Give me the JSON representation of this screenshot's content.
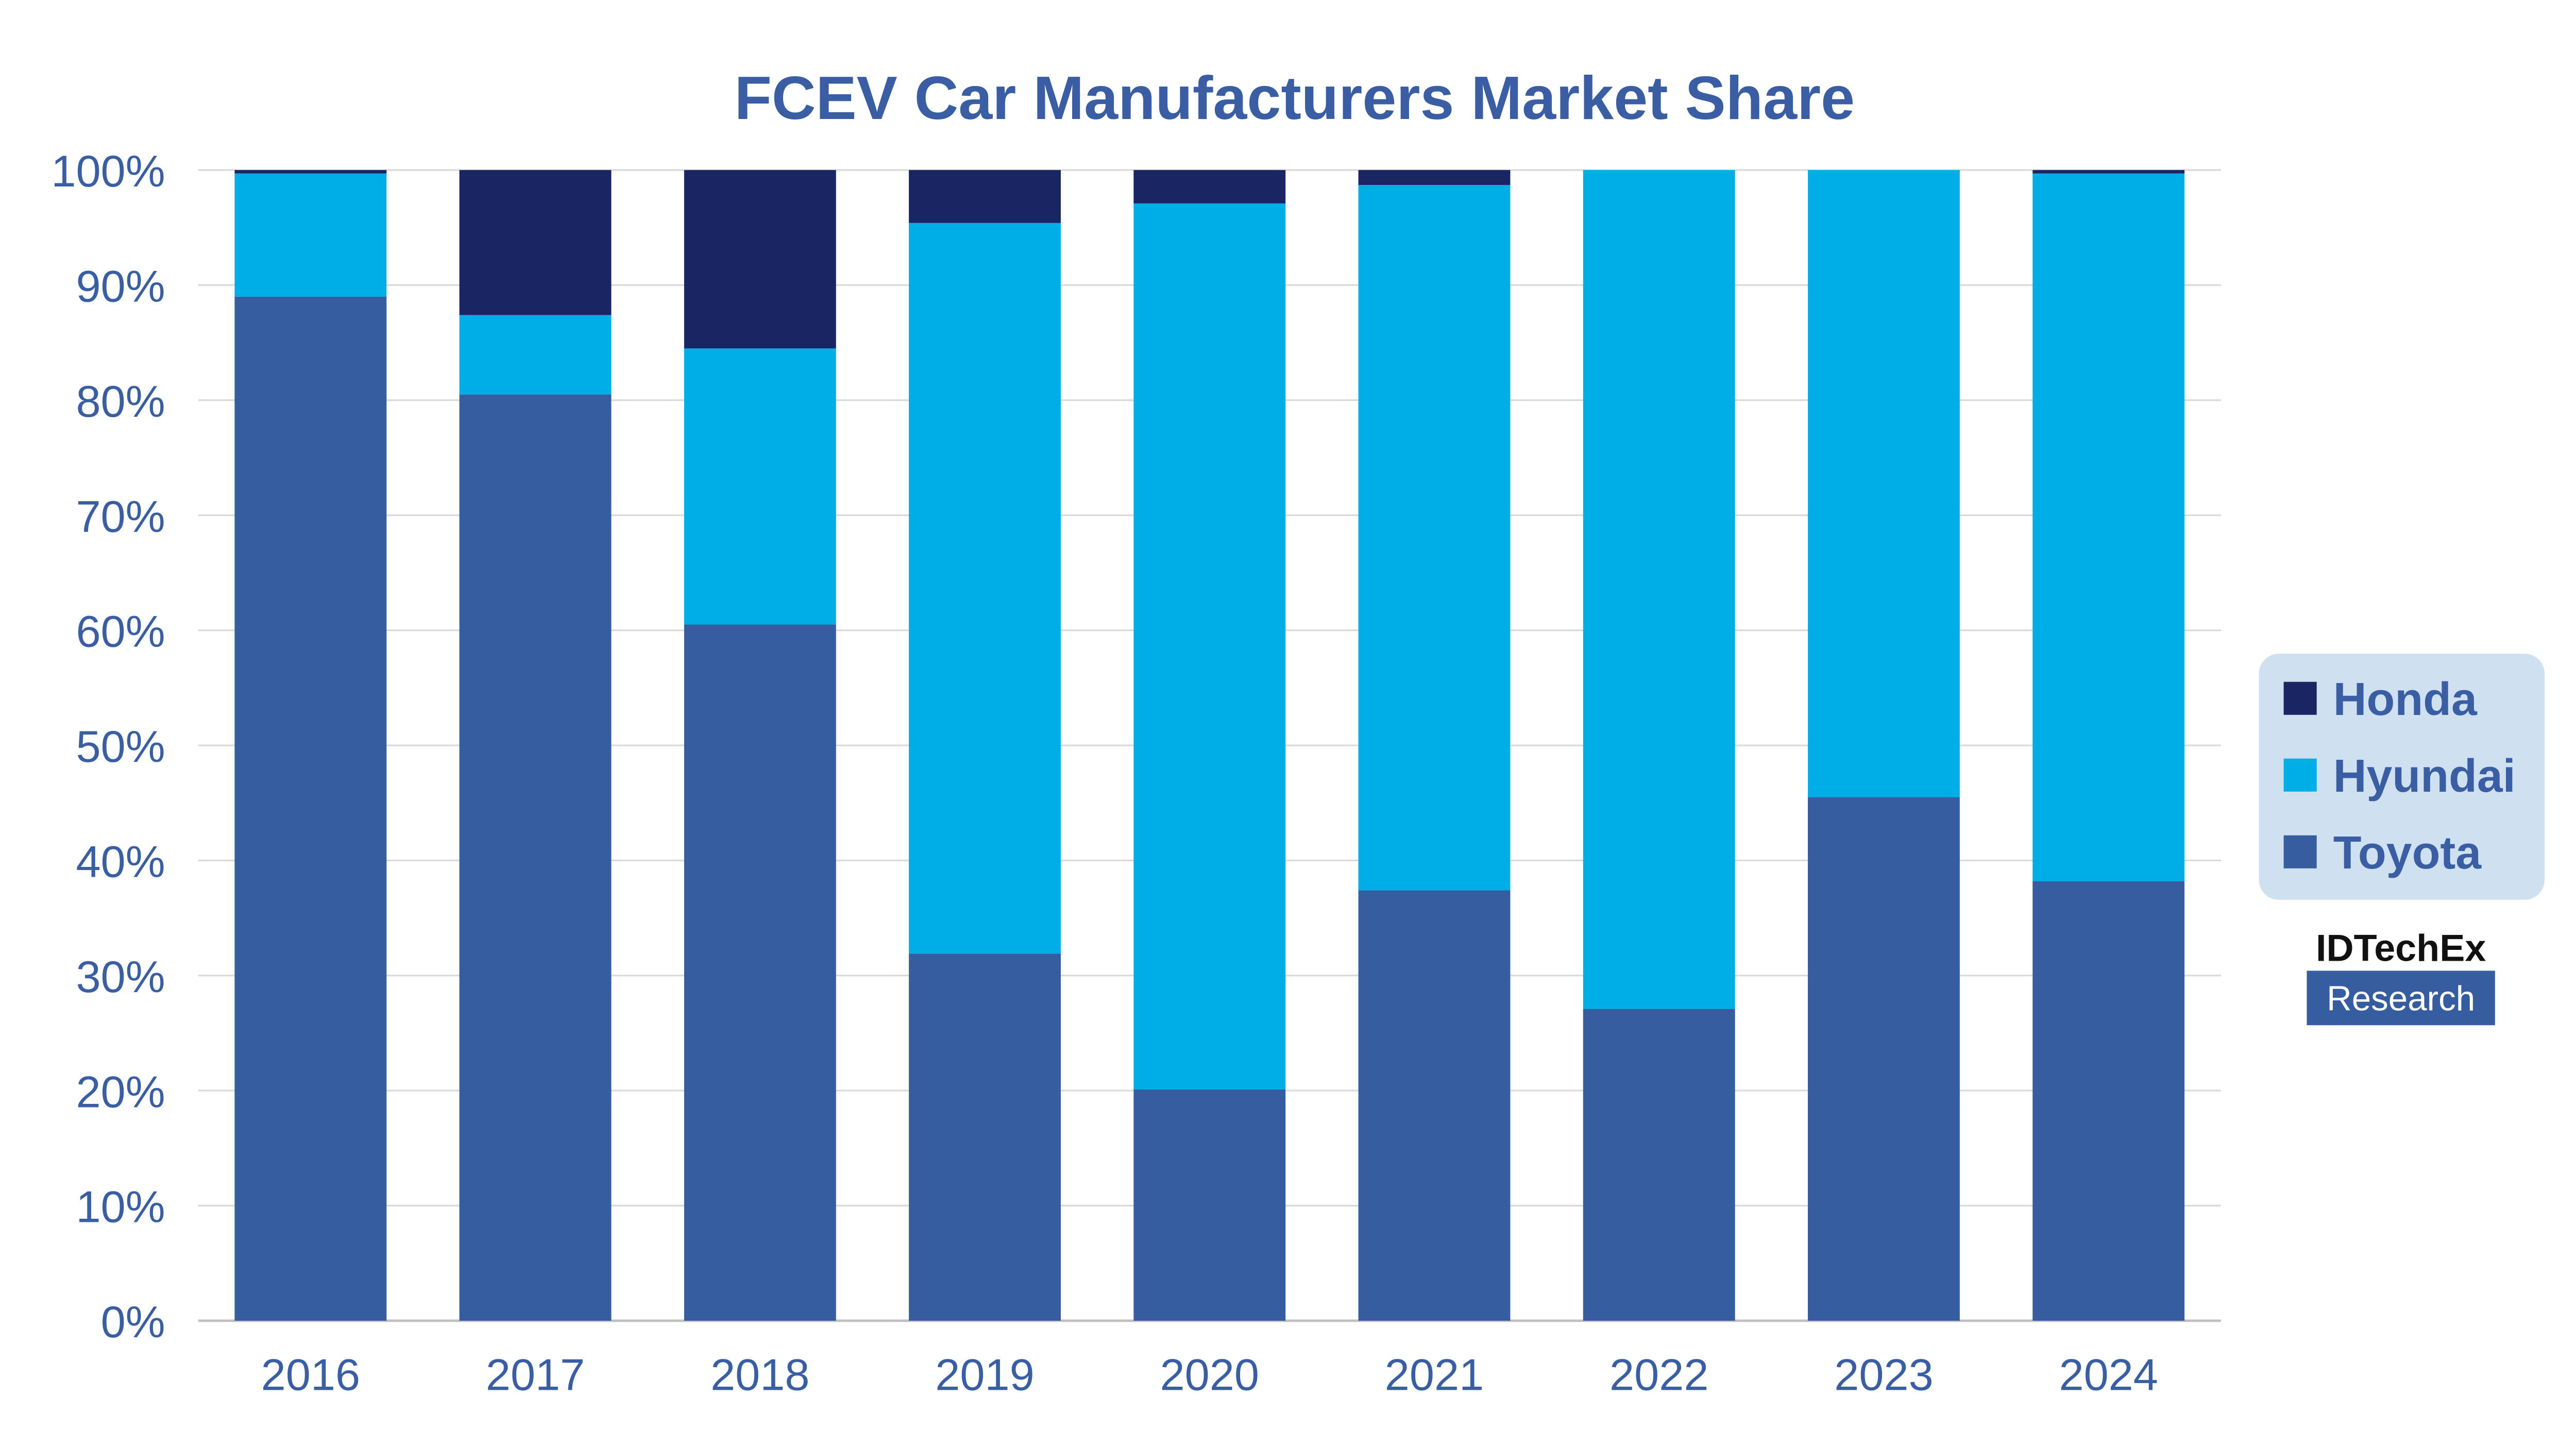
{
  "chart_data": {
    "type": "bar",
    "stacked": true,
    "title": "FCEV Car Manufacturers Market Share",
    "xlabel": "",
    "ylabel": "",
    "ylim": [
      0,
      100
    ],
    "y_ticks": [
      "0%",
      "10%",
      "20%",
      "30%",
      "40%",
      "50%",
      "60%",
      "70%",
      "80%",
      "90%",
      "100%"
    ],
    "grid": true,
    "legend_position": "right",
    "categories": [
      "2016",
      "2017",
      "2018",
      "2019",
      "2020",
      "2021",
      "2022",
      "2023",
      "2024"
    ],
    "series": [
      {
        "name": "Toyota",
        "color": "#375da1",
        "values": [
          89.0,
          80.5,
          60.5,
          31.9,
          20.1,
          37.4,
          27.1,
          45.5,
          38.2
        ]
      },
      {
        "name": "Hyundai",
        "color": "#00aee7",
        "values": [
          10.7,
          6.9,
          24.0,
          63.5,
          77.0,
          61.3,
          72.9,
          54.5,
          61.5
        ]
      },
      {
        "name": "Honda",
        "color": "#1a2563",
        "values": [
          0.3,
          12.6,
          15.5,
          4.6,
          2.9,
          1.3,
          0.0,
          0.0,
          0.3
        ]
      }
    ],
    "legend_order": [
      "Honda",
      "Hyundai",
      "Toyota"
    ]
  },
  "branding": {
    "logo_line1": "IDTechEx",
    "logo_line2": "Research"
  },
  "colors": {
    "text": "#3a5ea4",
    "grid": "#d9d9d9",
    "legend_bg": "#cfe0f1",
    "logo_box": "#375da1"
  }
}
